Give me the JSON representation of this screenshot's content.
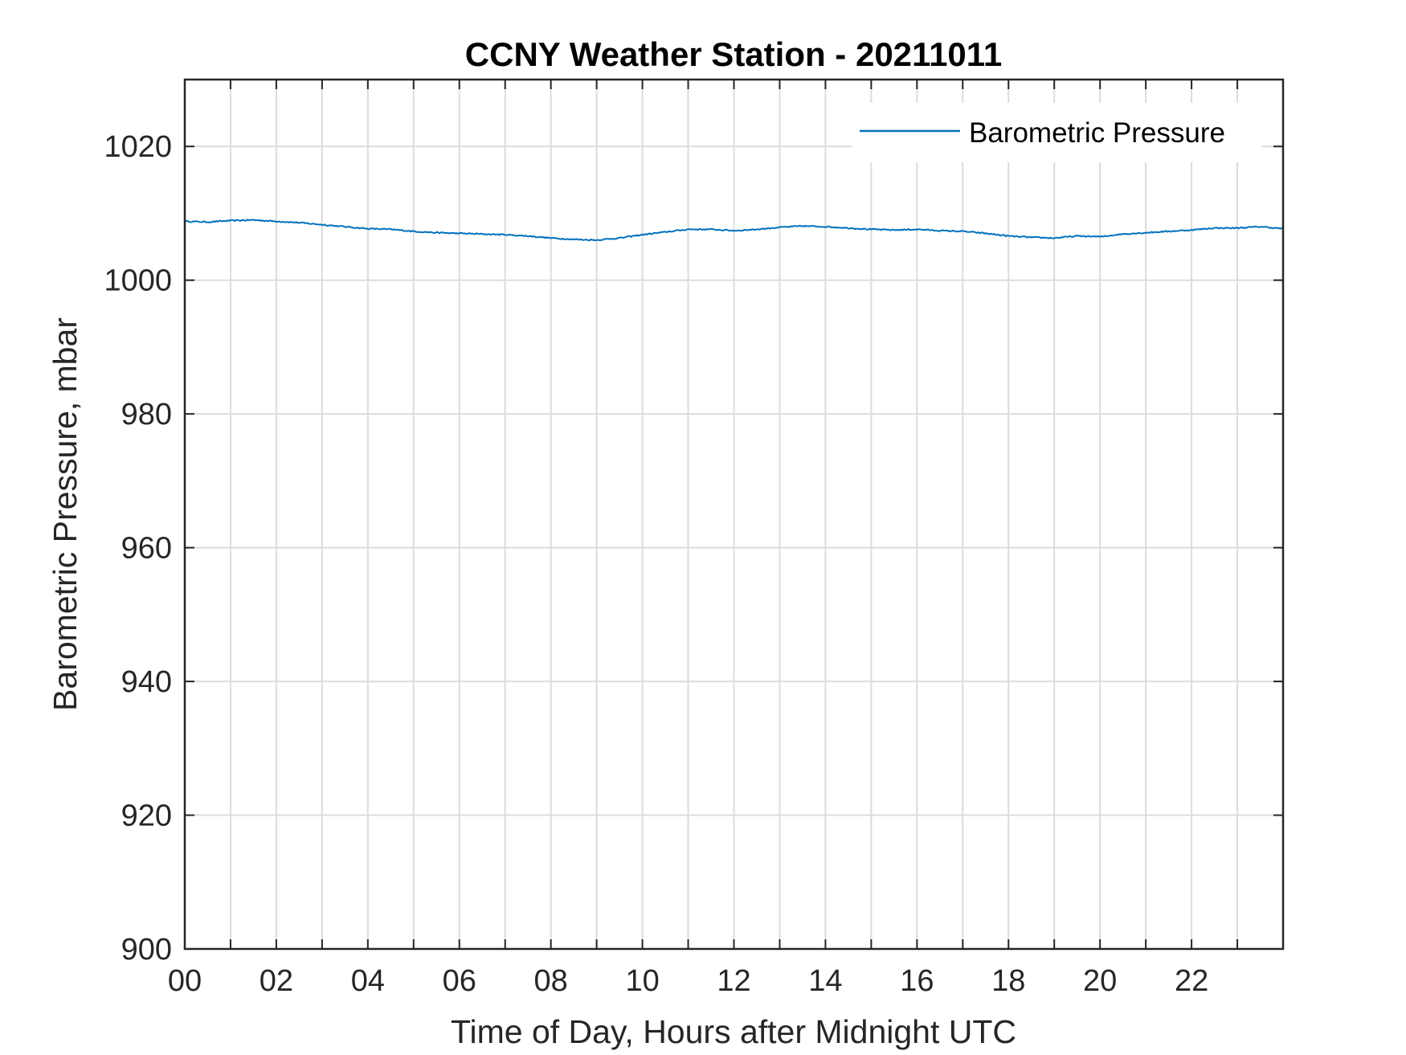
{
  "chart_data": {
    "type": "line",
    "title": "CCNY Weather Station - 20211011",
    "xlabel": "Time of Day, Hours after Midnight UTC",
    "ylabel": "Barometric Pressure, mbar",
    "xlim": [
      0,
      24
    ],
    "ylim": [
      900,
      1030
    ],
    "x_tick_values": [
      0,
      2,
      4,
      6,
      8,
      10,
      12,
      14,
      16,
      18,
      20,
      22
    ],
    "x_tick_labels": [
      "00",
      "02",
      "04",
      "06",
      "08",
      "10",
      "12",
      "14",
      "16",
      "18",
      "20",
      "22"
    ],
    "x_grid_step": 1,
    "y_ticks": [
      900,
      920,
      940,
      960,
      980,
      1000,
      1020
    ],
    "grid": true,
    "legend_position": "top-right",
    "colors": {
      "series": "#0072bd",
      "axes": "#262626",
      "grid": "#dcdcdc"
    },
    "series": [
      {
        "name": "Barometric Pressure",
        "x": [
          0,
          0.5,
          1,
          1.5,
          2,
          2.5,
          3,
          3.5,
          4,
          4.5,
          5,
          5.5,
          6,
          6.5,
          7,
          7.5,
          8,
          8.5,
          9,
          9.5,
          10,
          10.5,
          11,
          11.5,
          12,
          12.5,
          13,
          13.5,
          14,
          14.5,
          15,
          15.5,
          16,
          16.5,
          17,
          17.5,
          18,
          18.5,
          19,
          19.5,
          20,
          20.5,
          21,
          21.5,
          22,
          22.5,
          23,
          23.5,
          24
        ],
        "y": [
          1008.8,
          1008.7,
          1008.9,
          1009.0,
          1008.8,
          1008.6,
          1008.3,
          1008.0,
          1007.7,
          1007.6,
          1007.3,
          1007.1,
          1007.0,
          1006.9,
          1006.8,
          1006.6,
          1006.3,
          1006.1,
          1006.0,
          1006.3,
          1006.8,
          1007.2,
          1007.6,
          1007.6,
          1007.4,
          1007.6,
          1007.9,
          1008.1,
          1008.0,
          1007.8,
          1007.6,
          1007.5,
          1007.6,
          1007.4,
          1007.3,
          1007.0,
          1006.6,
          1006.4,
          1006.3,
          1006.6,
          1006.5,
          1006.9,
          1007.1,
          1007.3,
          1007.5,
          1007.8,
          1007.8,
          1008.0,
          1007.7
        ]
      }
    ]
  }
}
